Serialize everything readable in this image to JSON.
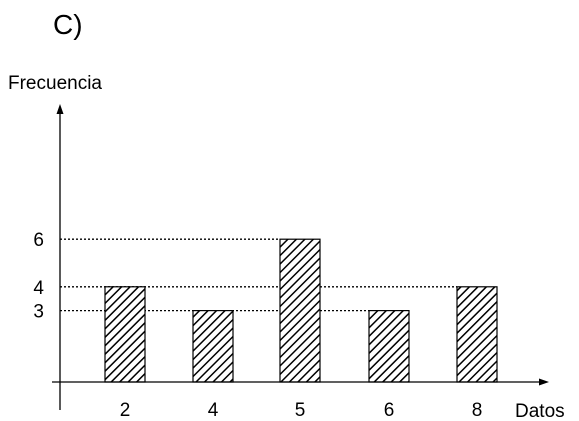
{
  "panel_label": "C)",
  "chart_data": {
    "type": "bar",
    "categories": [
      "2",
      "4",
      "5",
      "6",
      "8"
    ],
    "values": [
      4,
      3,
      6,
      3,
      4
    ],
    "ylabel": "Frecuencia",
    "xlabel": "Datos",
    "y_ticks": [
      "3",
      "4",
      "6"
    ],
    "ylim": [
      0,
      9
    ],
    "grid": false,
    "reference_lines": "dotted lines from the y-axis to the top of bars at 3, 4 and 6",
    "bar_fill": "black diagonal hatching on white",
    "bar_color": "#000000"
  }
}
